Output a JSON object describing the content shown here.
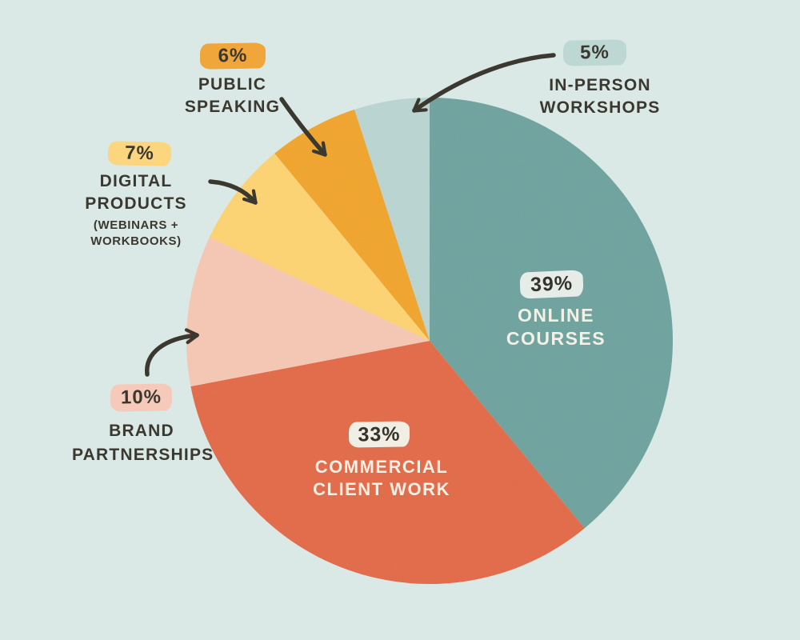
{
  "background": "#DBE9E6",
  "ink": "#3B382F",
  "chart_data": {
    "type": "pie",
    "title": "",
    "start_angle_deg": 90,
    "direction": "clockwise",
    "legend_position": "callouts",
    "slices": [
      {
        "id": "online-courses",
        "label": "Online Courses",
        "value": 39,
        "pct_label": "39%",
        "color": "#6FA29E",
        "badge_bg": "#E6EDE8",
        "badge_text_color": "#35332C",
        "text_color": "#F2F1E6",
        "label_placement": "inside",
        "line1": "ONLINE",
        "line2": "COURSES"
      },
      {
        "id": "commercial-client-work",
        "label": "Commercial Client Work",
        "value": 33,
        "pct_label": "33%",
        "color": "#E16B4A",
        "badge_bg": "#F1EEE3",
        "badge_text_color": "#35332C",
        "text_color": "#F6EFE3",
        "label_placement": "inside",
        "line1": "COMMERCIAL",
        "line2": "CLIENT WORK"
      },
      {
        "id": "brand-partnerships",
        "label": "Brand Partnerships",
        "value": 10,
        "pct_label": "10%",
        "color": "#F4C6B3",
        "badge_bg": "#F6CABA",
        "label_placement": "callout",
        "line1": "BRAND",
        "line2": "PARTNERSHIPS"
      },
      {
        "id": "digital-products",
        "label": "Digital Products (Webinars + Workbooks)",
        "value": 7,
        "pct_label": "7%",
        "color": "#FBD172",
        "badge_bg": "#FBD67F",
        "label_placement": "callout",
        "line1": "DIGITAL PRODUCTS",
        "line2": "(WEBINARS + WORKBOOKS)"
      },
      {
        "id": "public-speaking",
        "label": "Public Speaking",
        "value": 6,
        "pct_label": "6%",
        "color": "#EFA42E",
        "badge_bg": "#F0A63A",
        "label_placement": "callout",
        "line1": "PUBLIC SPEAKING",
        "line2": ""
      },
      {
        "id": "in-person-workshops",
        "label": "In-Person Workshops",
        "value": 5,
        "pct_label": "5%",
        "color": "#B9D4D0",
        "badge_bg": "#BDD8D3",
        "label_placement": "callout",
        "line1": "IN-PERSON WORKSHOPS",
        "line2": ""
      }
    ]
  }
}
